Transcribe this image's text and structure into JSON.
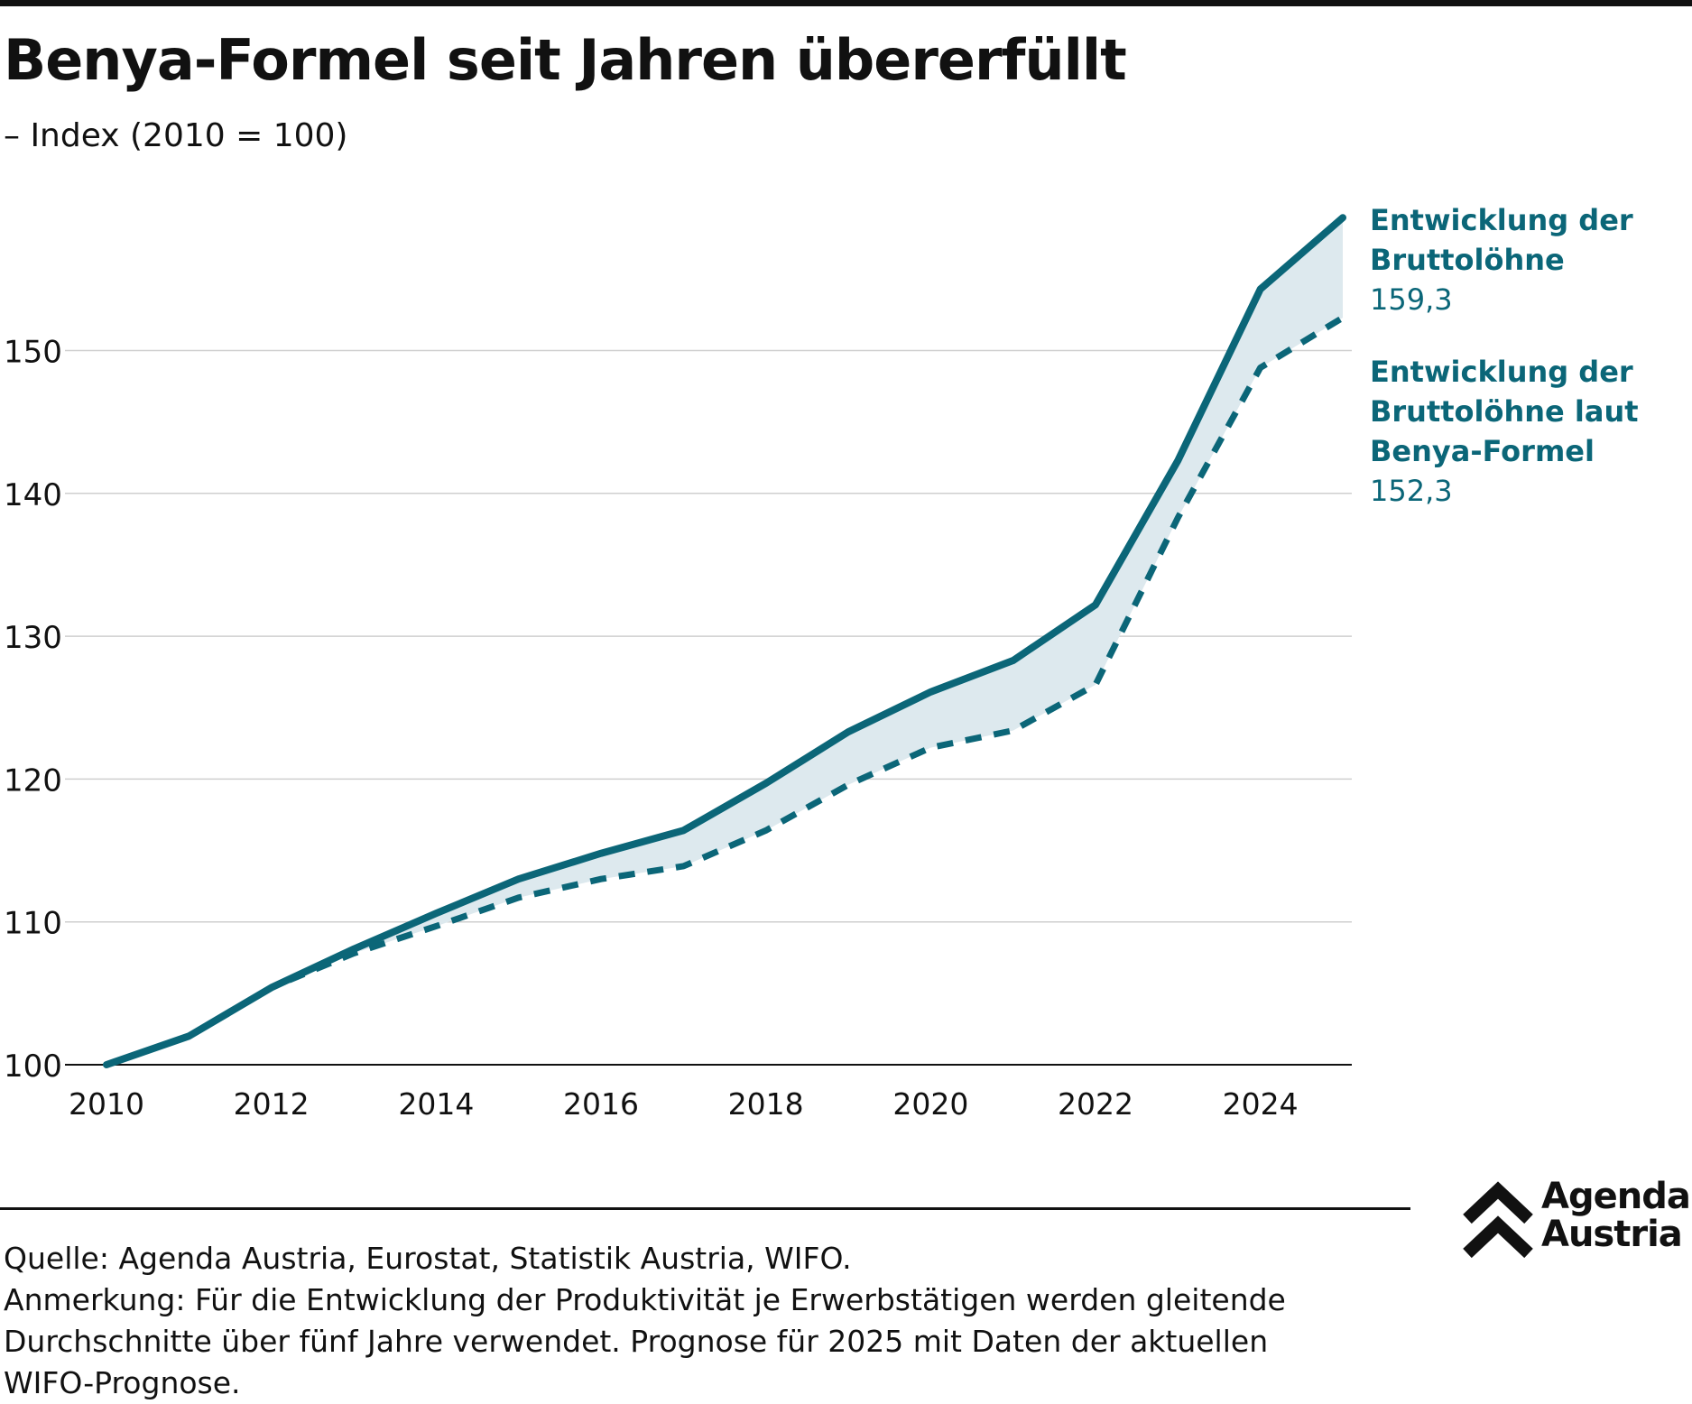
{
  "title": "Benya-Formel seit Jahren übererfüllt",
  "subtitle": "– Index (2010 = 100)",
  "colors": {
    "line": "#0b6678",
    "area": "#dde9ee",
    "grid": "#cfcfcf",
    "text": "#111111"
  },
  "chart_data": {
    "type": "line",
    "x": [
      2010,
      2011,
      2012,
      2013,
      2014,
      2015,
      2016,
      2017,
      2018,
      2019,
      2020,
      2021,
      2022,
      2023,
      2024,
      2025
    ],
    "series": [
      {
        "name": "Entwicklung der Bruttolöhne",
        "style": "solid",
        "values": [
          100,
          102,
          105.4,
          108.1,
          110.6,
          113,
          114.8,
          116.4,
          119.7,
          123.3,
          126.1,
          128.3,
          132.2,
          142.3,
          154.3,
          159.3
        ]
      },
      {
        "name": "Entwicklung der Bruttolöhne laut Benya-Formel",
        "style": "dashed",
        "values": [
          100,
          102,
          105.4,
          107.8,
          109.7,
          111.7,
          113,
          113.9,
          116.4,
          119.6,
          122.2,
          123.4,
          126.6,
          138.3,
          148.8,
          152.3
        ]
      }
    ],
    "labels": [
      {
        "lines": [
          "Entwicklung der",
          "Bruttolöhne"
        ],
        "value": "159,3"
      },
      {
        "lines": [
          "Entwicklung der",
          "Bruttolöhne laut",
          "Benya-Formel"
        ],
        "value": "152,3"
      }
    ],
    "ylim": [
      100,
      160
    ],
    "yticks": [
      "100",
      "110",
      "120",
      "130",
      "140",
      "150"
    ],
    "xticks": [
      "2010",
      "2012",
      "2014",
      "2016",
      "2018",
      "2020",
      "2022",
      "2024"
    ],
    "grid": true,
    "shaded_area_between_series": true
  },
  "footer": {
    "source": "Quelle: Agenda Austria, Eurostat, Statistik Austria, WIFO.",
    "note_lines": [
      "Anmerkung: Für die Entwicklung der Produktivität je Erwerbstätigen werden gleitende",
      "Durchschnitte über fünf Jahre verwendet. Prognose für 2025 mit Daten der aktuellen",
      "WIFO-Prognose."
    ]
  },
  "logo": {
    "line1": "Agenda",
    "line2": "Austria"
  }
}
